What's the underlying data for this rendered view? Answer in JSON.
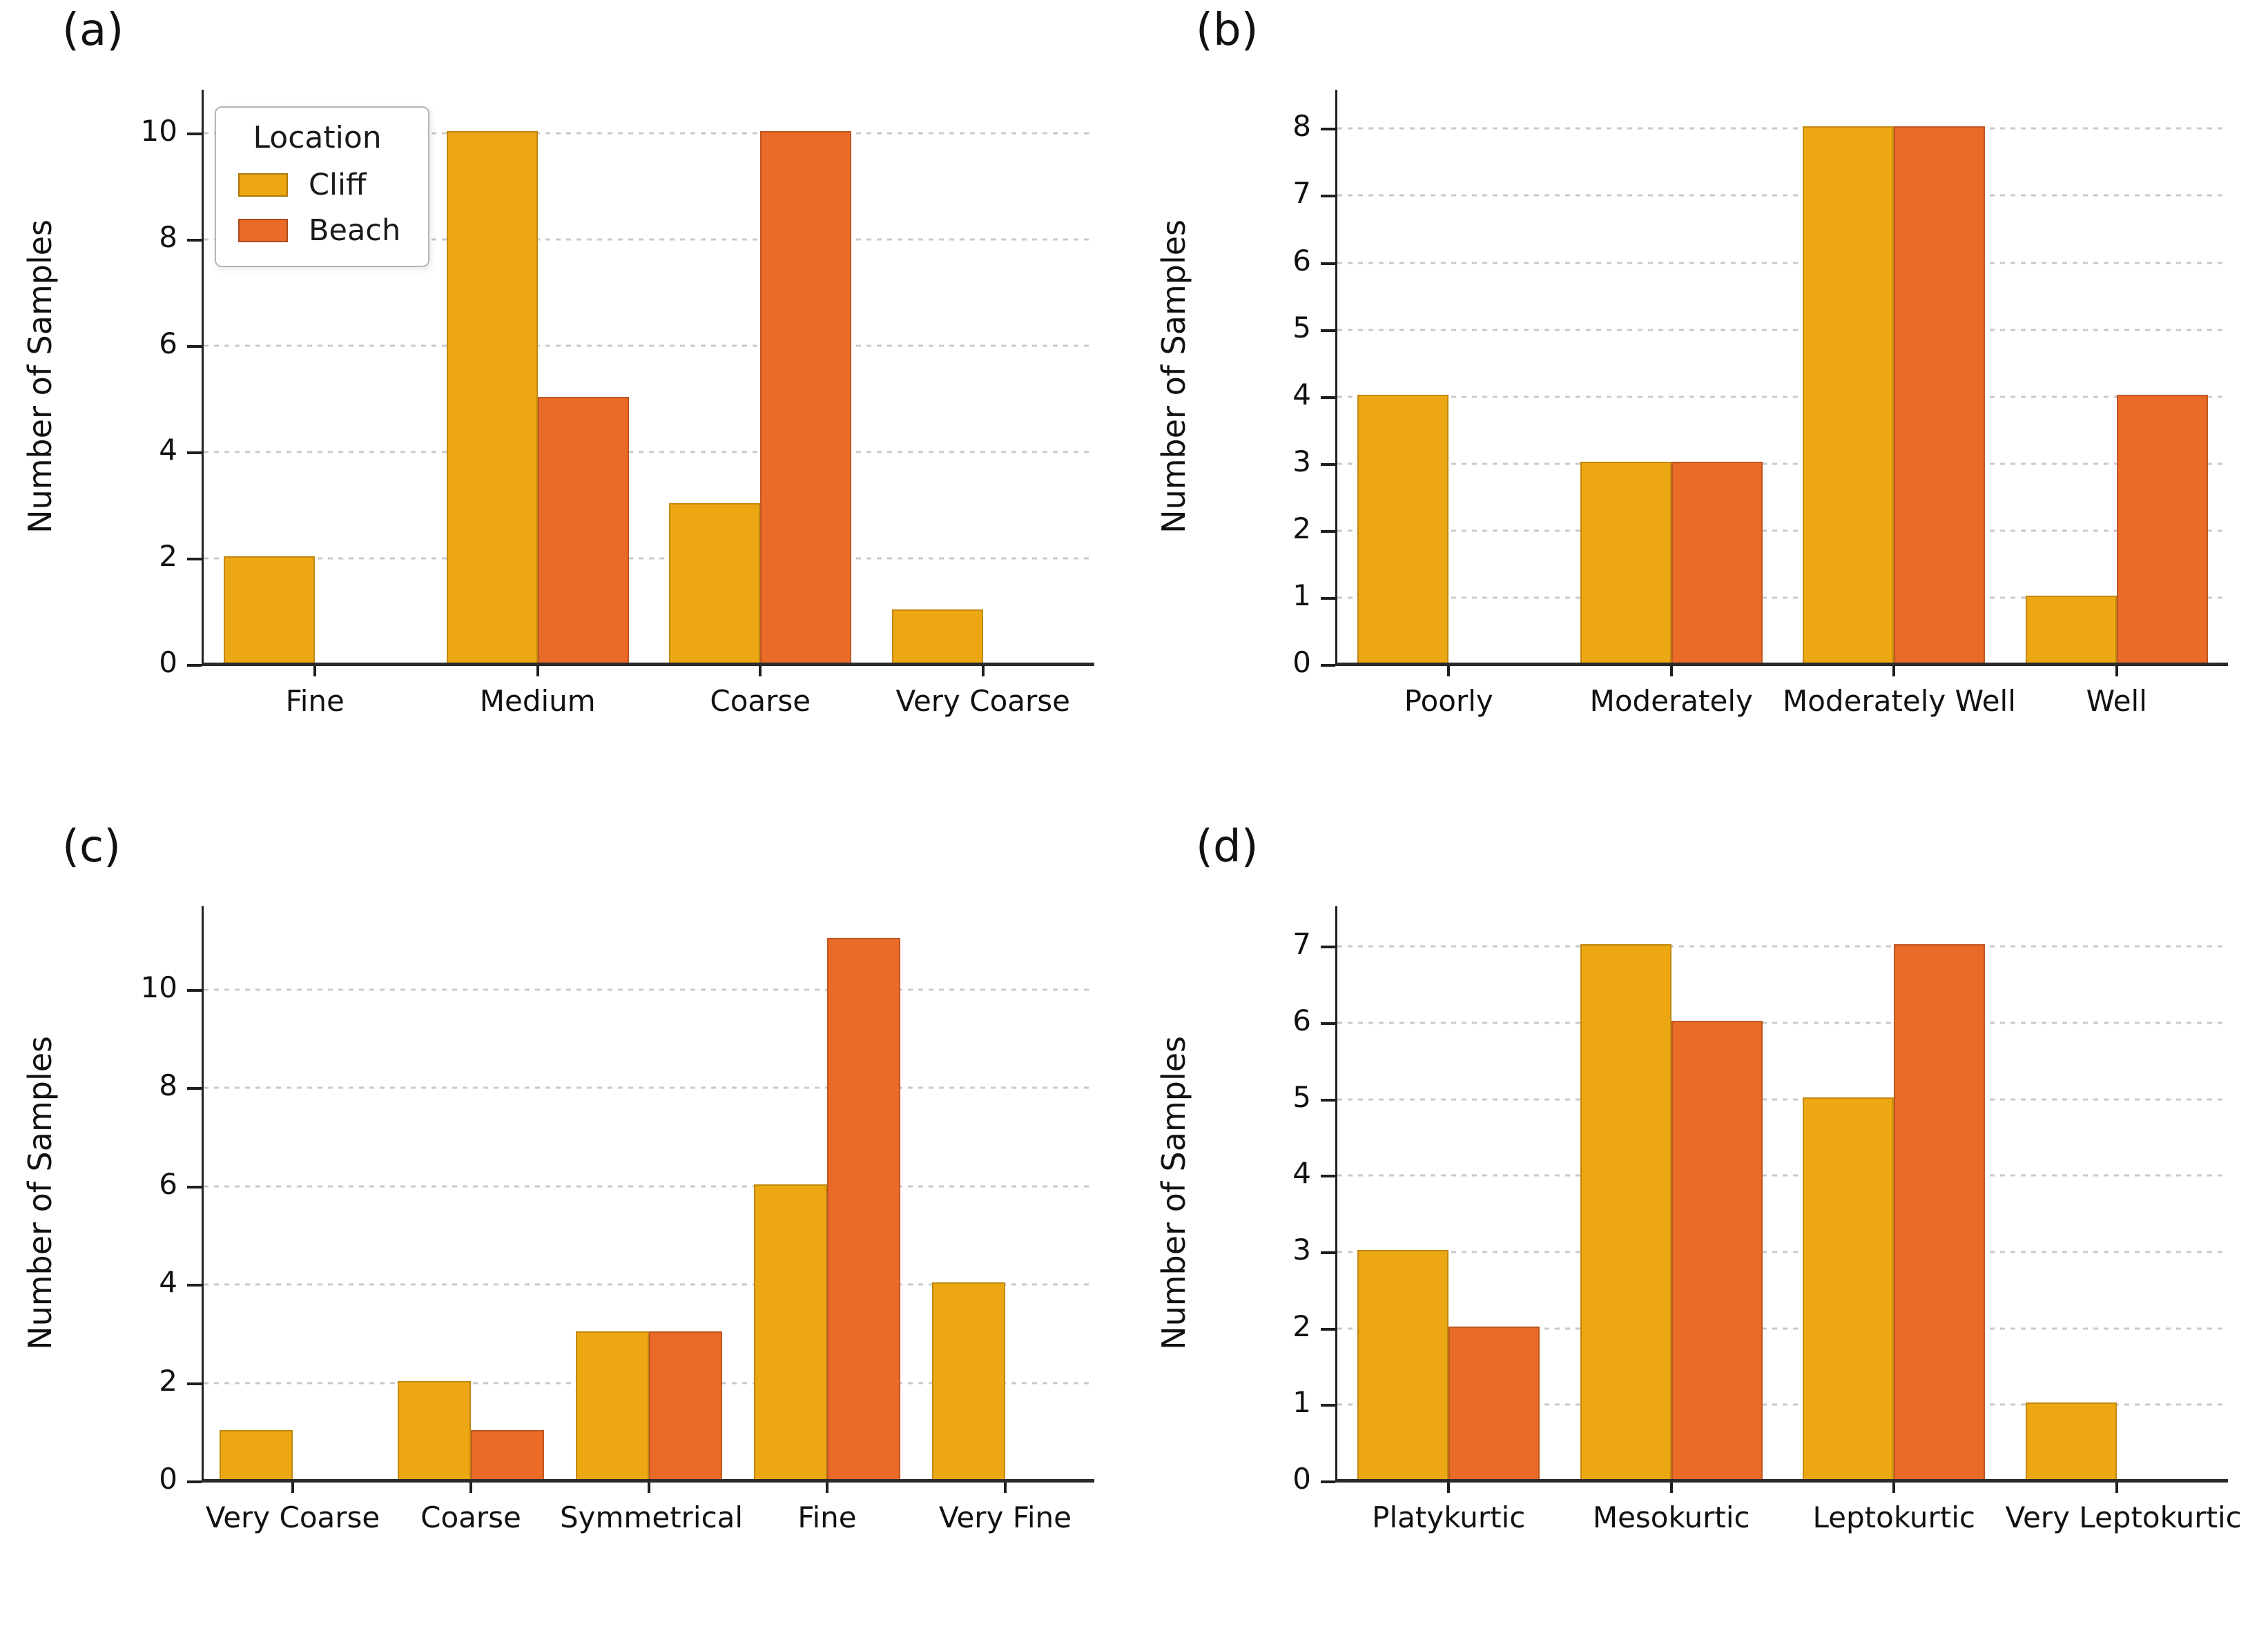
{
  "figure": {
    "ylabel": "Number of Samples",
    "background": "#ffffff",
    "grid_color": "#c9c9c9",
    "spine_color": "#1f1f1f",
    "legend": {
      "title": "Location",
      "items": [
        {
          "label": "Cliff",
          "color": "#ECA713"
        },
        {
          "label": "Beach",
          "color": "#EA6A28"
        }
      ]
    },
    "colors": {
      "Cliff": "#ECA713",
      "Beach": "#EA6A28"
    }
  },
  "chart_data": [
    {
      "id": "a",
      "panel_label": "(a)",
      "type": "bar",
      "title": "",
      "xlabel": "",
      "ylabel": "Number of Samples",
      "categories": [
        "Fine",
        "Medium",
        "Coarse",
        "Very Coarse"
      ],
      "series": [
        {
          "name": "Cliff",
          "values": [
            2,
            10,
            3,
            1
          ]
        },
        {
          "name": "Beach",
          "values": [
            0,
            5,
            10,
            0
          ]
        }
      ],
      "yticks": [
        0,
        2,
        4,
        6,
        8,
        10
      ],
      "ylim": [
        0,
        10.78
      ],
      "grid": true,
      "legend_position": "upper left"
    },
    {
      "id": "b",
      "panel_label": "(b)",
      "type": "bar",
      "title": "",
      "xlabel": "",
      "ylabel": "Number of Samples",
      "categories": [
        "Poorly",
        "Moderately",
        "Moderately Well",
        "Well"
      ],
      "series": [
        {
          "name": "Cliff",
          "values": [
            4,
            3,
            8,
            1
          ]
        },
        {
          "name": "Beach",
          "values": [
            0,
            3,
            8,
            4
          ]
        }
      ],
      "yticks": [
        0,
        1,
        2,
        3,
        4,
        5,
        6,
        7,
        8
      ],
      "ylim": [
        0,
        8.55
      ],
      "grid": true,
      "legend_position": null
    },
    {
      "id": "c",
      "panel_label": "(c)",
      "type": "bar",
      "title": "",
      "xlabel": "",
      "ylabel": "Number of Samples",
      "categories": [
        "Very Coarse",
        "Coarse",
        "Symmetrical",
        "Fine",
        "Very Fine"
      ],
      "series": [
        {
          "name": "Cliff",
          "values": [
            1,
            2,
            3,
            6,
            4
          ]
        },
        {
          "name": "Beach",
          "values": [
            0,
            1,
            3,
            11,
            0
          ]
        }
      ],
      "yticks": [
        0,
        2,
        4,
        6,
        8,
        10
      ],
      "ylim": [
        0,
        11.65
      ],
      "grid": true,
      "legend_position": null
    },
    {
      "id": "d",
      "panel_label": "(d)",
      "type": "bar",
      "title": "",
      "xlabel": "",
      "ylabel": "Number of Samples",
      "categories": [
        "Platykurtic",
        "Mesokurtic",
        "Leptokurtic",
        "Very Leptokurtic"
      ],
      "series": [
        {
          "name": "Cliff",
          "values": [
            3,
            7,
            5,
            1
          ]
        },
        {
          "name": "Beach",
          "values": [
            2,
            6,
            7,
            0
          ]
        }
      ],
      "yticks": [
        0,
        1,
        2,
        3,
        4,
        5,
        6,
        7
      ],
      "ylim": [
        0,
        7.5
      ],
      "grid": true,
      "legend_position": null
    }
  ]
}
